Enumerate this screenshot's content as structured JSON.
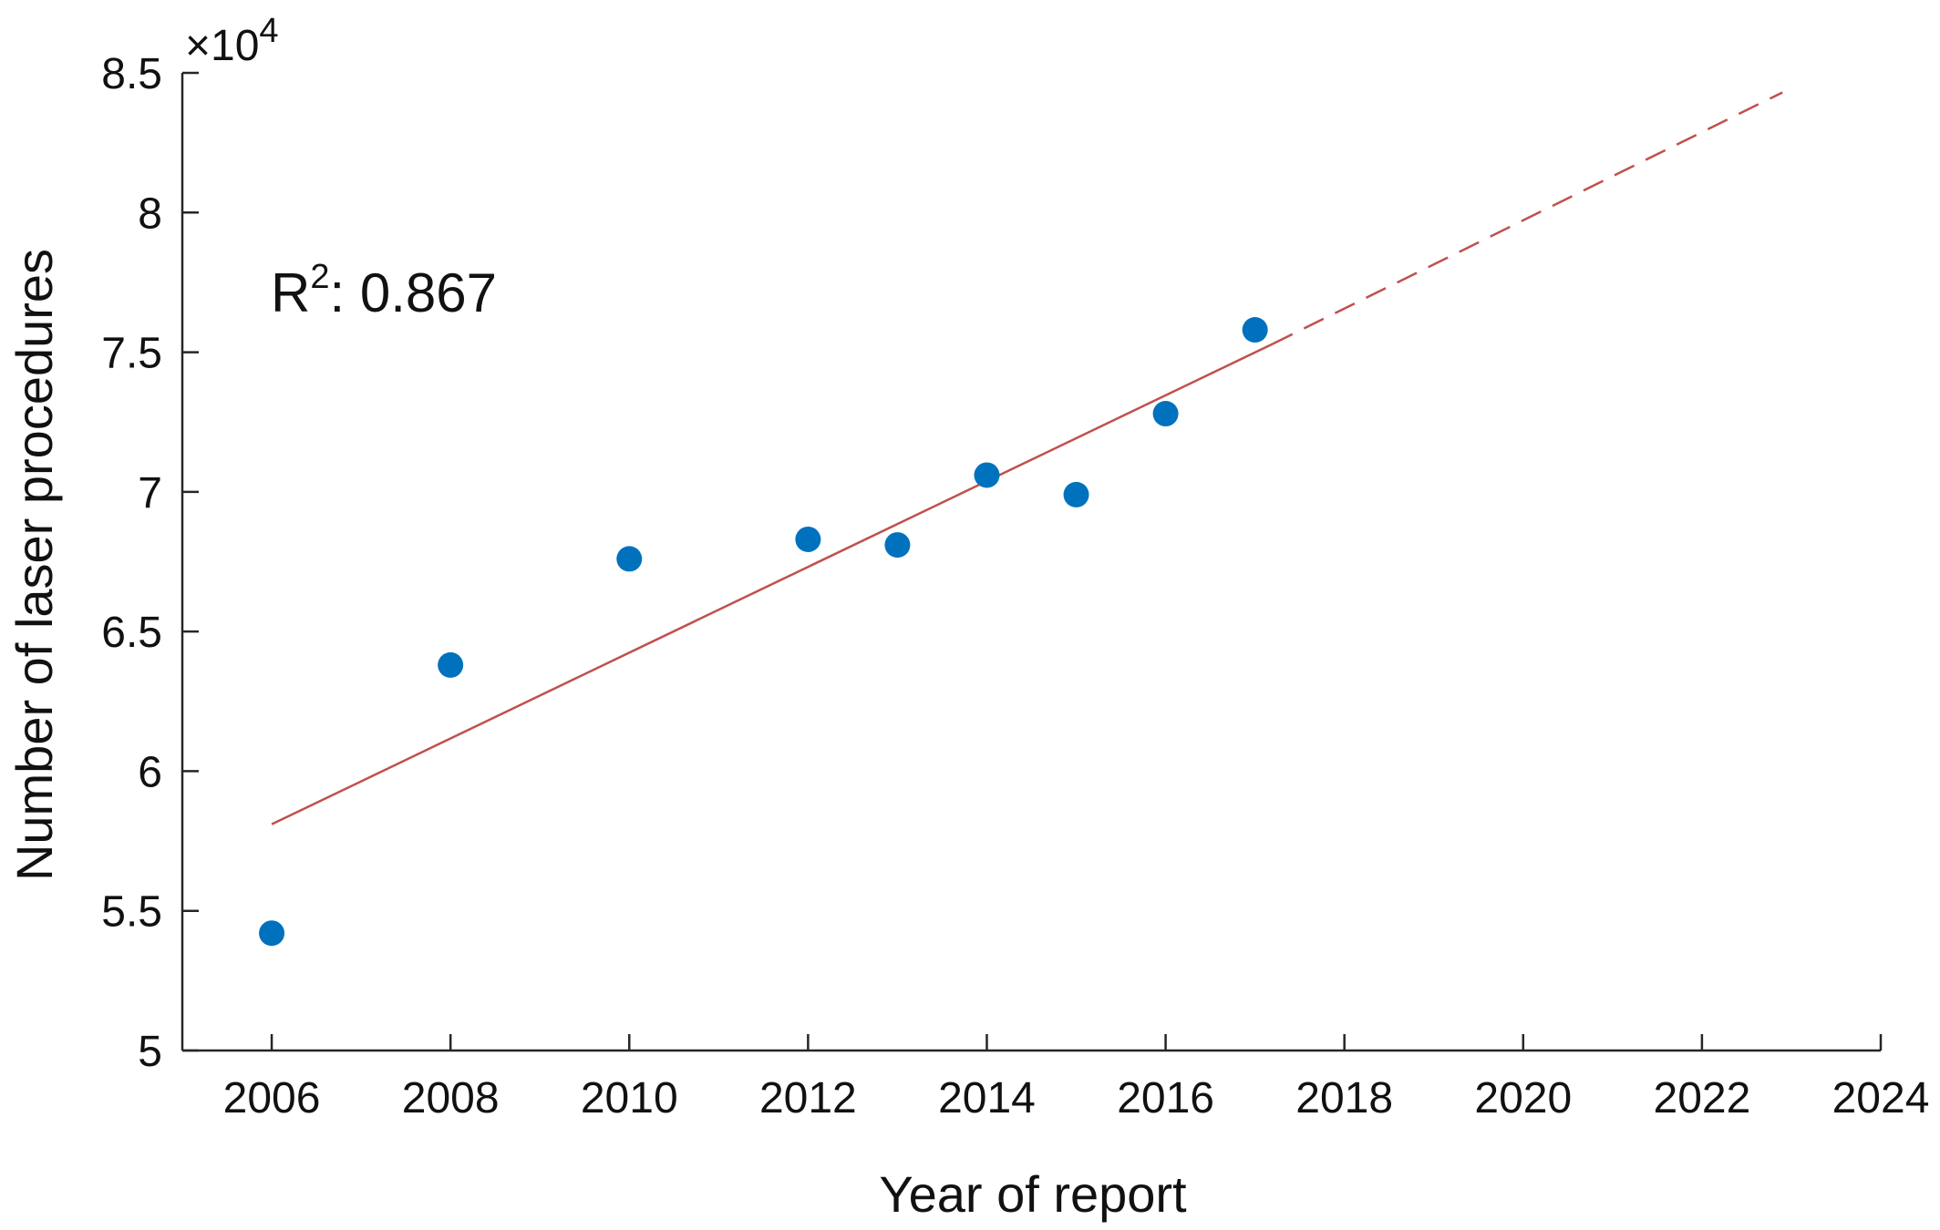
{
  "chart_data": {
    "type": "scatter",
    "xlabel": "Year of report",
    "ylabel": "Number of laser procedures",
    "y_multiplier": {
      "base": "×10",
      "exponent": "4"
    },
    "xlim": [
      2005,
      2024
    ],
    "ylim": [
      5,
      8.5
    ],
    "x_ticks": [
      2006,
      2008,
      2010,
      2012,
      2014,
      2016,
      2018,
      2020,
      2022,
      2024
    ],
    "y_ticks": [
      5,
      5.5,
      6,
      6.5,
      7,
      7.5,
      8,
      8.5
    ],
    "y_tick_labels": [
      "5",
      "5.5",
      "6",
      "6.5",
      "7",
      "7.5",
      "8",
      "8.5"
    ],
    "grid": false,
    "series": [
      {
        "color": "#0072BD",
        "points": [
          {
            "x": 2006,
            "y": 5.42
          },
          {
            "x": 2008,
            "y": 6.38
          },
          {
            "x": 2010,
            "y": 6.76
          },
          {
            "x": 2012,
            "y": 6.83
          },
          {
            "x": 2013,
            "y": 6.81
          },
          {
            "x": 2014,
            "y": 7.06
          },
          {
            "x": 2015,
            "y": 6.99
          },
          {
            "x": 2016,
            "y": 7.28
          },
          {
            "x": 2017,
            "y": 7.58
          }
        ]
      }
    ],
    "fit_line": {
      "color": "#C0504D",
      "solid": {
        "x": [
          2006,
          2017.2
        ],
        "y": [
          5.81,
          7.53
        ]
      },
      "dashed": {
        "x": [
          2017.2,
          2022.9
        ],
        "y": [
          7.53,
          8.43
        ]
      }
    },
    "annotation": {
      "prefix": "R",
      "superscript": "2",
      "text": ": 0.867"
    }
  }
}
